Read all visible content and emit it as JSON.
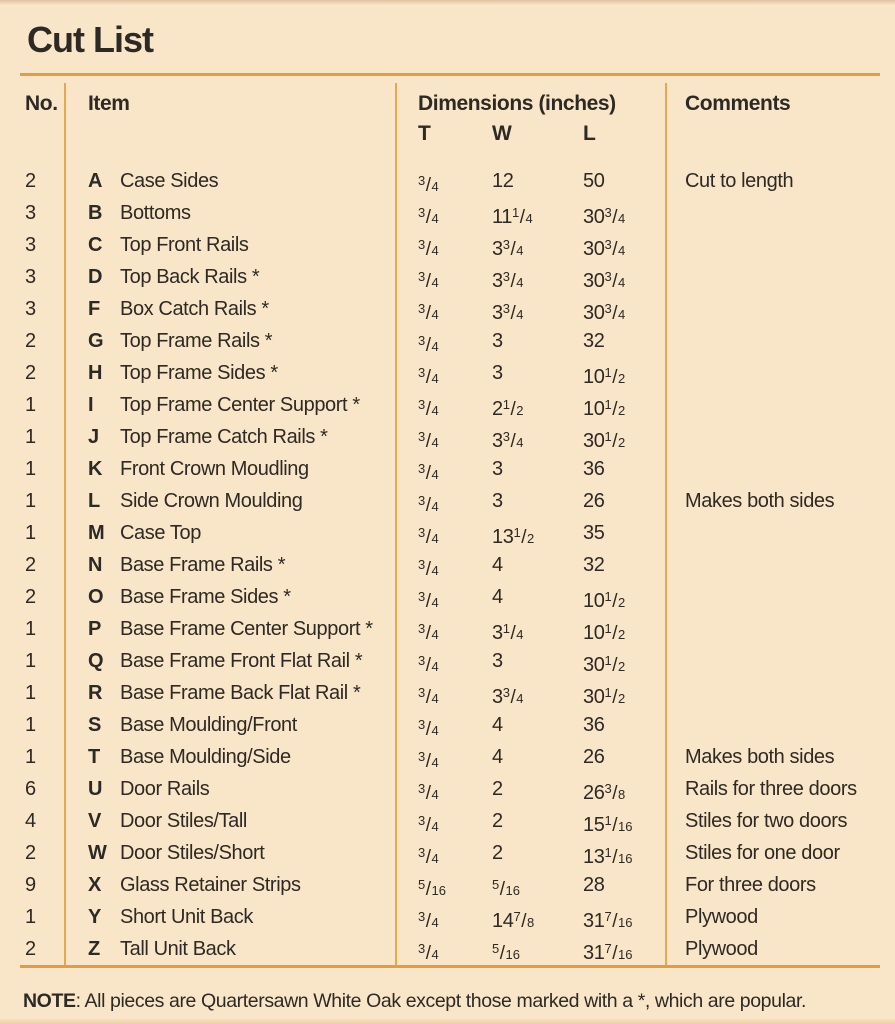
{
  "page": {
    "title": "Cut List",
    "note": {
      "label": "NOTE",
      "text": ": All pieces are Quartersawn White Oak except those marked with a *, which are popular."
    }
  },
  "colors": {
    "background": "#f9e6c8",
    "rule_orange": "#e29c43",
    "divider_orange": "#e8a74d",
    "text": "#2d2925"
  },
  "table": {
    "headers": {
      "no": "No.",
      "item": "Item",
      "dimensions": "Dimensions (inches)",
      "t": "T",
      "w": "W",
      "l": "L",
      "comments": "Comments"
    },
    "rows": [
      {
        "qty": "2",
        "letter": "A",
        "name": "Case Sides",
        "t": "3/4",
        "w": "12",
        "l": "50",
        "comment": "Cut to length"
      },
      {
        "qty": "3",
        "letter": "B",
        "name": "Bottoms",
        "t": "3/4",
        "w": "11 1/4",
        "l": "30 3/4",
        "comment": ""
      },
      {
        "qty": "3",
        "letter": "C",
        "name": "Top Front Rails",
        "t": "3/4",
        "w": "3 3/4",
        "l": "30 3/4",
        "comment": ""
      },
      {
        "qty": "3",
        "letter": "D",
        "name": "Top Back Rails *",
        "t": "3/4",
        "w": "3 3/4",
        "l": "30 3/4",
        "comment": ""
      },
      {
        "qty": "3",
        "letter": "F",
        "name": "Box Catch Rails *",
        "t": "3/4",
        "w": "3 3/4",
        "l": "30 3/4",
        "comment": ""
      },
      {
        "qty": "2",
        "letter": "G",
        "name": "Top Frame Rails *",
        "t": "3/4",
        "w": "3",
        "l": "32",
        "comment": ""
      },
      {
        "qty": "2",
        "letter": "H",
        "name": "Top Frame Sides *",
        "t": "3/4",
        "w": "3",
        "l": "10 1/2",
        "comment": ""
      },
      {
        "qty": "1",
        "letter": "I",
        "name": "Top Frame Center Support *",
        "t": "3/4",
        "w": "2 1/2",
        "l": "10 1/2",
        "comment": ""
      },
      {
        "qty": "1",
        "letter": "J",
        "name": "Top Frame Catch Rails *",
        "t": "3/4",
        "w": "3 3/4",
        "l": "30 1/2",
        "comment": ""
      },
      {
        "qty": "1",
        "letter": "K",
        "name": "Front Crown Moudling",
        "t": "3/4",
        "w": "3",
        "l": "36",
        "comment": ""
      },
      {
        "qty": "1",
        "letter": "L",
        "name": "Side Crown Moulding",
        "t": "3/4",
        "w": "3",
        "l": "26",
        "comment": "Makes both sides"
      },
      {
        "qty": "1",
        "letter": "M",
        "name": "Case Top",
        "t": "3/4",
        "w": "13 1/2",
        "l": "35",
        "comment": ""
      },
      {
        "qty": "2",
        "letter": "N",
        "name": "Base Frame Rails *",
        "t": "3/4",
        "w": "4",
        "l": "32",
        "comment": ""
      },
      {
        "qty": "2",
        "letter": "O",
        "name": "Base Frame Sides *",
        "t": "3/4",
        "w": "4",
        "l": "10 1/2",
        "comment": ""
      },
      {
        "qty": "1",
        "letter": "P",
        "name": "Base Frame Center Support *",
        "t": "3/4",
        "w": "3 1/4",
        "l": "10 1/2",
        "comment": ""
      },
      {
        "qty": "1",
        "letter": "Q",
        "name": "Base Frame Front Flat Rail *",
        "t": "3/4",
        "w": "3",
        "l": "30 1/2",
        "comment": ""
      },
      {
        "qty": "1",
        "letter": "R",
        "name": "Base Frame Back Flat Rail *",
        "t": "3/4",
        "w": "3 3/4",
        "l": "30 1/2",
        "comment": ""
      },
      {
        "qty": "1",
        "letter": "S",
        "name": "Base Moulding/Front",
        "t": "3/4",
        "w": "4",
        "l": "36",
        "comment": ""
      },
      {
        "qty": "1",
        "letter": "T",
        "name": "Base Moulding/Side",
        "t": "3/4",
        "w": "4",
        "l": "26",
        "comment": "Makes both sides"
      },
      {
        "qty": "6",
        "letter": "U",
        "name": "Door Rails",
        "t": "3/4",
        "w": "2",
        "l": "26 3/8",
        "comment": "Rails for three doors"
      },
      {
        "qty": "4",
        "letter": "V",
        "name": "Door Stiles/Tall",
        "t": "3/4",
        "w": "2",
        "l": "15 1/16",
        "comment": "Stiles for two doors"
      },
      {
        "qty": "2",
        "letter": "W",
        "name": "Door Stiles/Short",
        "t": "3/4",
        "w": "2",
        "l": "13 1/16",
        "comment": "Stiles for one door"
      },
      {
        "qty": "9",
        "letter": "X",
        "name": "Glass Retainer Strips",
        "t": "5/16",
        "w": "5/16",
        "l": "28",
        "comment": "For three doors"
      },
      {
        "qty": "1",
        "letter": "Y",
        "name": "Short Unit Back",
        "t": "3/4",
        "w": "14 7/8",
        "l": "31 7/16",
        "comment": "Plywood"
      },
      {
        "qty": "2",
        "letter": "Z",
        "name": "Tall Unit Back",
        "t": "3/4",
        "w": "5/16",
        "l": "31 7/16",
        "comment": "Plywood"
      }
    ]
  }
}
